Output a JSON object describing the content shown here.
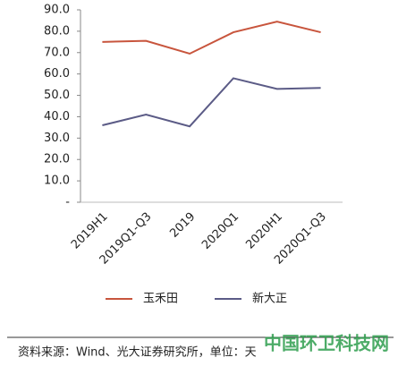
{
  "chart_data": {
    "type": "line",
    "categories": [
      "2019H1",
      "2019Q1-Q3",
      "2019",
      "2020Q1",
      "2020H1",
      "2020Q1-Q3"
    ],
    "series": [
      {
        "name": "玉禾田",
        "color": "#c8553d",
        "values": [
          75,
          75.5,
          69.5,
          79.5,
          84.5,
          79.5
        ]
      },
      {
        "name": "新大正",
        "color": "#5b5b86",
        "values": [
          36,
          41,
          35.5,
          58,
          53,
          53.5
        ]
      }
    ],
    "ylim": [
      0,
      90
    ],
    "yticks": [
      {
        "value": 0,
        "label": "-"
      },
      {
        "value": 10,
        "label": "10.0"
      },
      {
        "value": 20,
        "label": "20.0"
      },
      {
        "value": 30,
        "label": "30.0"
      },
      {
        "value": 40,
        "label": "40.0"
      },
      {
        "value": 50,
        "label": "50.0"
      },
      {
        "value": 60,
        "label": "60.0"
      },
      {
        "value": 70,
        "label": "70.0"
      },
      {
        "value": 80,
        "label": "80.0"
      },
      {
        "value": 90,
        "label": "90.0"
      }
    ],
    "source": "资料来源：Wind、光大证券研究所，单位：天",
    "watermark": "中国环卫科技网"
  }
}
